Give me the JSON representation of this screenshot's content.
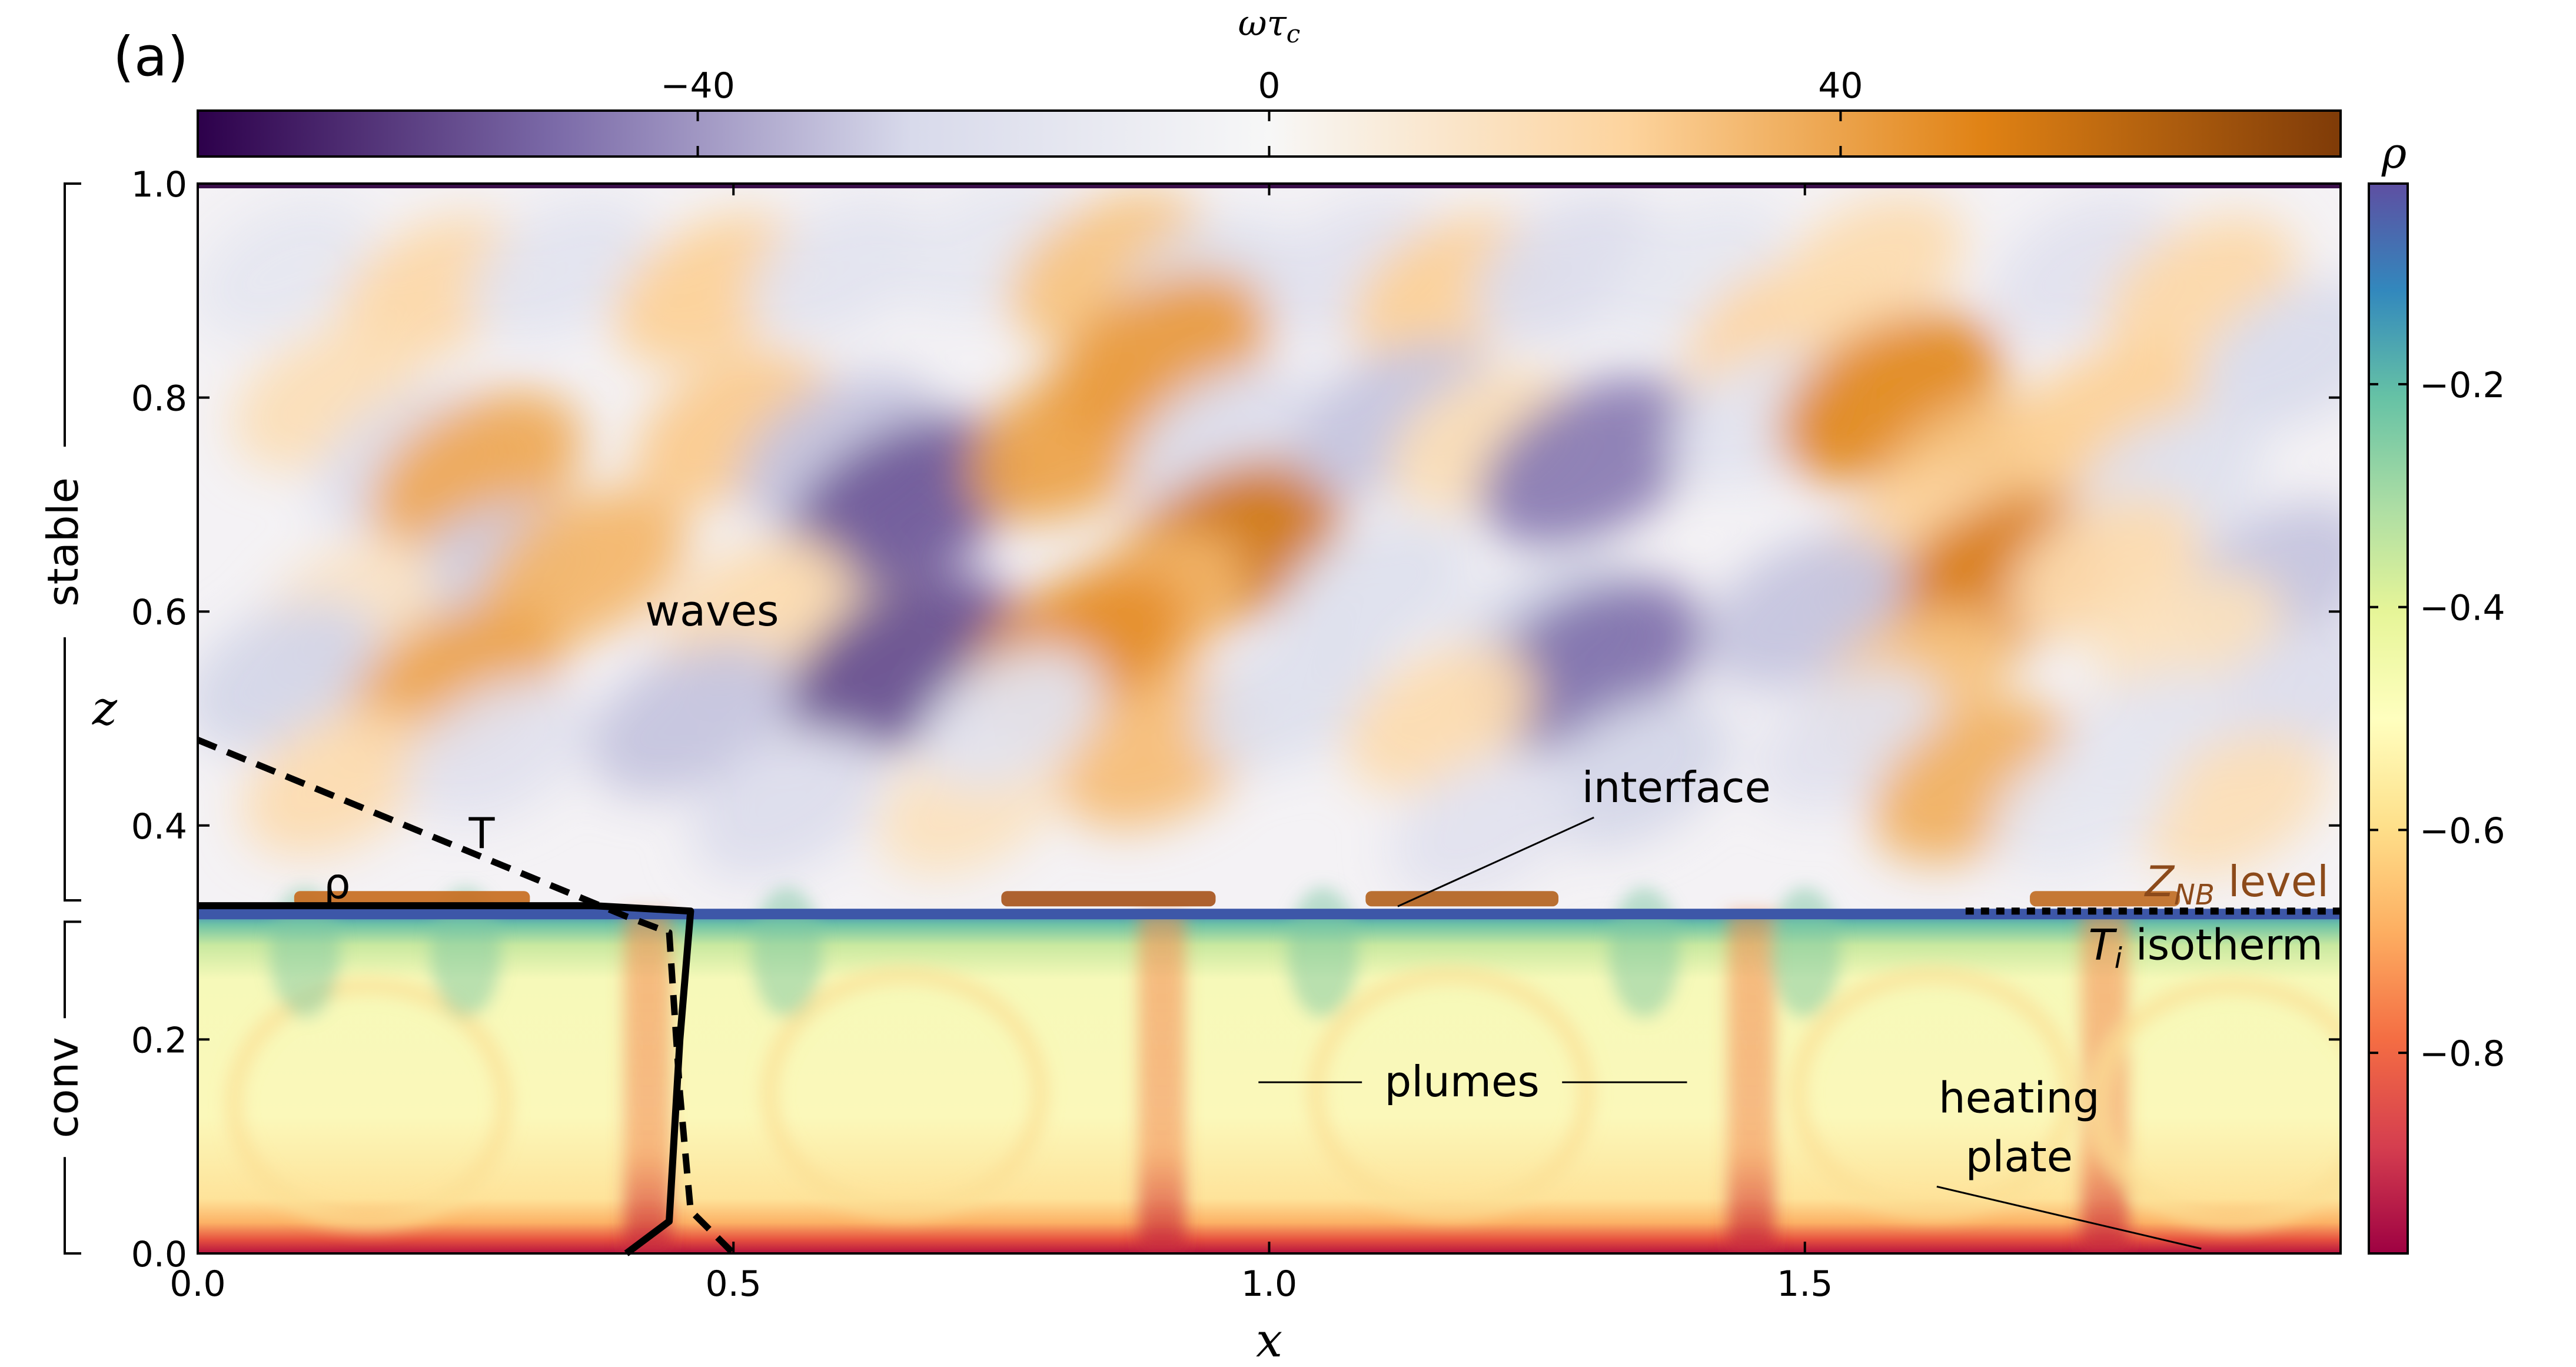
{
  "chart_data": {
    "type": "heatmap",
    "panel_label": "(a)",
    "xlabel": "x",
    "ylabel": "z",
    "xlim": [
      0.0,
      2.0
    ],
    "ylim": [
      0.0,
      1.0
    ],
    "x_ticks": [
      0.0,
      0.5,
      1.0,
      1.5
    ],
    "x_tick_labels": [
      "0.0",
      "0.5",
      "1.0",
      "1.5"
    ],
    "y_ticks": [
      0.0,
      0.2,
      0.4,
      0.6,
      0.8,
      1.0
    ],
    "y_tick_labels": [
      "0.0",
      "0.2",
      "0.4",
      "0.6",
      "0.8",
      "1.0"
    ],
    "regions": [
      {
        "label": "stable",
        "z_range": [
          0.33,
          1.0
        ]
      },
      {
        "label": "conv",
        "z_range": [
          0.0,
          0.31
        ]
      }
    ],
    "interface_z": 0.32,
    "colorbar_vorticity": {
      "label": "ωτ",
      "label_subscript": "c",
      "position": "top",
      "ticks": [
        -40,
        0,
        40
      ],
      "tick_labels": [
        "−40",
        "0",
        "40"
      ],
      "range": [
        -75,
        75
      ],
      "colors": [
        "#2d004b",
        "#7b6aa8",
        "#d8daeb",
        "#f7f7f7",
        "#fdd49e",
        "#e08214",
        "#7f3b08"
      ]
    },
    "colorbar_density": {
      "label": "ρ",
      "position": "right",
      "ticks": [
        -0.2,
        -0.4,
        -0.6,
        -0.8
      ],
      "tick_labels": [
        "−0.2",
        "−0.4",
        "−0.6",
        "−0.8"
      ],
      "range": [
        -0.98,
        -0.02
      ],
      "colors": [
        "#9e0142",
        "#d53e4f",
        "#f46d43",
        "#fdae61",
        "#fee08b",
        "#ffffbf",
        "#e6f598",
        "#abdda4",
        "#66c2a5",
        "#3288bd",
        "#5e4fa2"
      ]
    },
    "profiles": [
      {
        "name": "T",
        "style": "dashed",
        "points": [
          [
            0.0,
            0.48
          ],
          [
            0.4,
            0.315
          ],
          [
            0.44,
            0.3
          ],
          [
            0.45,
            0.15
          ],
          [
            0.46,
            0.04
          ],
          [
            0.5,
            0.0
          ]
        ]
      },
      {
        "name": "ρ",
        "style": "solid",
        "points": [
          [
            0.0,
            0.325
          ],
          [
            0.37,
            0.325
          ],
          [
            0.46,
            0.32
          ],
          [
            0.45,
            0.2
          ],
          [
            0.44,
            0.03
          ],
          [
            0.4,
            0.0
          ]
        ]
      }
    ],
    "reference_lines": [
      {
        "name": "T_i isotherm",
        "style": "dotted",
        "z": 0.32,
        "x_range": [
          1.65,
          2.0
        ]
      }
    ],
    "annotations": [
      {
        "text": "waves",
        "x": 0.48,
        "z": 0.6
      },
      {
        "text": "interface",
        "x": 1.38,
        "z": 0.435,
        "target": [
          1.12,
          0.32
        ]
      },
      {
        "text": "plumes",
        "x": 1.18,
        "z": 0.16,
        "arrows_to": [
          [
            0.99,
            0.16
          ],
          [
            1.39,
            0.16
          ]
        ]
      },
      {
        "text": "heating",
        "x": 1.7,
        "z": 0.145
      },
      {
        "text": "plate",
        "x": 1.7,
        "z": 0.09,
        "target": [
          1.87,
          0.0
        ]
      }
    ],
    "legend_labels": {
      "T": "T",
      "rho": "ρ",
      "znb": {
        "main": "Z",
        "sub": "NB",
        "rest": " level"
      },
      "isotherm": {
        "main": "T",
        "sub": "i",
        "rest": " isotherm"
      }
    },
    "annotation_colors": {
      "znb": "#8c4a1a",
      "lines": "#000000"
    },
    "waves_field": [
      {
        "x": 0.08,
        "z": 0.92,
        "v": -14
      },
      {
        "x": 0.22,
        "z": 0.9,
        "v": 22
      },
      {
        "x": 0.34,
        "z": 0.92,
        "v": -16
      },
      {
        "x": 0.12,
        "z": 0.8,
        "v": 18
      },
      {
        "x": 0.2,
        "z": 0.74,
        "v": -22
      },
      {
        "x": 0.26,
        "z": 0.73,
        "v": 38
      },
      {
        "x": 0.27,
        "z": 0.63,
        "v": -28
      },
      {
        "x": 0.36,
        "z": 0.64,
        "v": 34
      },
      {
        "x": 0.14,
        "z": 0.6,
        "v": 14
      },
      {
        "x": 0.08,
        "z": 0.54,
        "v": -26
      },
      {
        "x": 0.24,
        "z": 0.53,
        "v": 40
      },
      {
        "x": 0.13,
        "z": 0.44,
        "v": 20
      },
      {
        "x": 0.28,
        "z": 0.47,
        "v": -18
      },
      {
        "x": 0.48,
        "z": 0.9,
        "v": 26
      },
      {
        "x": 0.6,
        "z": 0.92,
        "v": -16
      },
      {
        "x": 0.5,
        "z": 0.77,
        "v": 28
      },
      {
        "x": 0.6,
        "z": 0.75,
        "v": -30
      },
      {
        "x": 0.66,
        "z": 0.7,
        "v": -54
      },
      {
        "x": 0.52,
        "z": 0.6,
        "v": 20
      },
      {
        "x": 0.63,
        "z": 0.56,
        "v": 18
      },
      {
        "x": 0.66,
        "z": 0.55,
        "v": -56
      },
      {
        "x": 0.46,
        "z": 0.5,
        "v": -30
      },
      {
        "x": 0.55,
        "z": 0.42,
        "v": -22
      },
      {
        "x": 0.72,
        "z": 0.42,
        "v": 16
      },
      {
        "x": 0.74,
        "z": 0.94,
        "v": -14
      },
      {
        "x": 0.85,
        "z": 0.92,
        "v": 30
      },
      {
        "x": 0.94,
        "z": 0.9,
        "v": -20
      },
      {
        "x": 0.82,
        "z": 0.76,
        "v": 40
      },
      {
        "x": 0.9,
        "z": 0.84,
        "v": 42
      },
      {
        "x": 0.96,
        "z": 0.76,
        "v": -22
      },
      {
        "x": 0.96,
        "z": 0.66,
        "v": 54
      },
      {
        "x": 0.88,
        "z": 0.6,
        "v": 34
      },
      {
        "x": 0.82,
        "z": 0.56,
        "v": 46
      },
      {
        "x": 0.9,
        "z": 0.47,
        "v": 32
      },
      {
        "x": 1.02,
        "z": 0.52,
        "v": -20
      },
      {
        "x": 0.76,
        "z": 0.5,
        "v": -16
      },
      {
        "x": 1.08,
        "z": 0.92,
        "v": -18
      },
      {
        "x": 1.17,
        "z": 0.9,
        "v": 26
      },
      {
        "x": 1.28,
        "z": 0.92,
        "v": -22
      },
      {
        "x": 1.12,
        "z": 0.78,
        "v": -30
      },
      {
        "x": 1.2,
        "z": 0.76,
        "v": 18
      },
      {
        "x": 1.3,
        "z": 0.74,
        "v": -46
      },
      {
        "x": 1.1,
        "z": 0.62,
        "v": -20
      },
      {
        "x": 1.26,
        "z": 0.58,
        "v": -26
      },
      {
        "x": 1.3,
        "z": 0.55,
        "v": -48
      },
      {
        "x": 1.16,
        "z": 0.5,
        "v": 20
      },
      {
        "x": 1.34,
        "z": 0.45,
        "v": -26
      },
      {
        "x": 1.2,
        "z": 0.4,
        "v": -18
      },
      {
        "x": 1.4,
        "z": 0.92,
        "v": -14
      },
      {
        "x": 1.48,
        "z": 0.86,
        "v": 24
      },
      {
        "x": 1.56,
        "z": 0.92,
        "v": 20
      },
      {
        "x": 1.46,
        "z": 0.78,
        "v": -16
      },
      {
        "x": 1.58,
        "z": 0.8,
        "v": 48
      },
      {
        "x": 1.66,
        "z": 0.73,
        "v": 30
      },
      {
        "x": 1.6,
        "z": 0.66,
        "v": 24
      },
      {
        "x": 1.68,
        "z": 0.63,
        "v": 52
      },
      {
        "x": 1.5,
        "z": 0.6,
        "v": -30
      },
      {
        "x": 1.6,
        "z": 0.53,
        "v": 30
      },
      {
        "x": 1.54,
        "z": 0.48,
        "v": -18
      },
      {
        "x": 1.66,
        "z": 0.44,
        "v": 36
      },
      {
        "x": 1.76,
        "z": 0.92,
        "v": -18
      },
      {
        "x": 1.87,
        "z": 0.9,
        "v": 22
      },
      {
        "x": 1.96,
        "z": 0.84,
        "v": -24
      },
      {
        "x": 1.78,
        "z": 0.78,
        "v": 26
      },
      {
        "x": 1.84,
        "z": 0.72,
        "v": -20
      },
      {
        "x": 1.94,
        "z": 0.63,
        "v": -30
      },
      {
        "x": 1.78,
        "z": 0.64,
        "v": 20
      },
      {
        "x": 1.86,
        "z": 0.57,
        "v": 16
      },
      {
        "x": 1.96,
        "z": 0.52,
        "v": -22
      },
      {
        "x": 1.82,
        "z": 0.48,
        "v": -16
      },
      {
        "x": 1.9,
        "z": 0.42,
        "v": 18
      },
      {
        "x": 1.76,
        "z": 0.42,
        "v": -14
      }
    ]
  }
}
